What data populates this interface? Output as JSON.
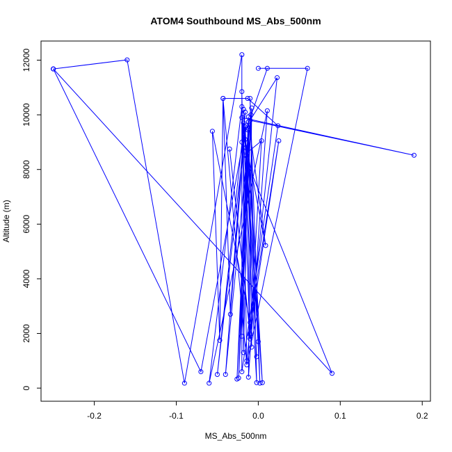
{
  "chart_data": {
    "type": "line",
    "title": "ATOM4 Southbound MS_Abs_500nm",
    "xlabel": "MS_Abs_500nm",
    "ylabel": "Altitude (m)",
    "xlim": [
      -0.265,
      0.21
    ],
    "ylim": [
      -480,
      12700
    ],
    "x_ticks": [
      -0.2,
      -0.1,
      0.0,
      0.1,
      0.2
    ],
    "x_tick_labels": [
      "-0.2",
      "-0.1",
      "0.0",
      "0.1",
      "0.2"
    ],
    "y_ticks": [
      0,
      2000,
      4000,
      6000,
      8000,
      10000,
      12000
    ],
    "y_tick_labels": [
      "0",
      "2000",
      "4000",
      "6000",
      "8000",
      "10000",
      "12000"
    ],
    "series": [
      {
        "color": "#0000ff",
        "marker": "open-circle",
        "points": [
          {
            "x": -0.25,
            "y": 11680
          },
          {
            "x": -0.16,
            "y": 12010
          },
          {
            "x": -0.09,
            "y": 180
          },
          {
            "x": -0.02,
            "y": 12200
          },
          {
            "x": -0.02,
            "y": 600
          },
          {
            "x": 0.024,
            "y": 9600
          },
          {
            "x": -0.013,
            "y": 10600
          },
          {
            "x": -0.043,
            "y": 10600
          },
          {
            "x": -0.014,
            "y": 850
          },
          {
            "x": 0.06,
            "y": 11700
          },
          {
            "x": 0.0,
            "y": 11700
          },
          {
            "x": 0.011,
            "y": 11700
          },
          {
            "x": -0.02,
            "y": 9000
          },
          {
            "x": -0.02,
            "y": 10850
          },
          {
            "x": -0.014,
            "y": 1000
          },
          {
            "x": 0.023,
            "y": 11360
          },
          {
            "x": -0.01,
            "y": 9800
          },
          {
            "x": 0.19,
            "y": 8520
          },
          {
            "x": -0.02,
            "y": 9900
          },
          {
            "x": -0.01,
            "y": 1800
          },
          {
            "x": 0.004,
            "y": 9050
          },
          {
            "x": -0.017,
            "y": 8530
          },
          {
            "x": 0.09,
            "y": 540
          },
          {
            "x": -0.25,
            "y": 11680
          },
          {
            "x": -0.25,
            "y": 11680
          },
          {
            "x": -0.07,
            "y": 600
          },
          {
            "x": -0.015,
            "y": 9600
          },
          {
            "x": -0.05,
            "y": 500
          },
          {
            "x": -0.016,
            "y": 10100
          },
          {
            "x": -0.04,
            "y": 500
          },
          {
            "x": -0.009,
            "y": 10000
          },
          {
            "x": -0.026,
            "y": 330
          },
          {
            "x": -0.012,
            "y": 9930
          },
          {
            "x": -0.024,
            "y": 370
          },
          {
            "x": -0.008,
            "y": 10250
          },
          {
            "x": -0.012,
            "y": 400
          },
          {
            "x": 0.011,
            "y": 10150
          },
          {
            "x": -0.06,
            "y": 180
          },
          {
            "x": -0.02,
            "y": 10300
          },
          {
            "x": -0.002,
            "y": 200
          },
          {
            "x": -0.01,
            "y": 10600
          },
          {
            "x": 0.002,
            "y": 180
          },
          {
            "x": -0.013,
            "y": 9450
          },
          {
            "x": 0.005,
            "y": 200
          },
          {
            "x": -0.018,
            "y": 9700
          },
          {
            "x": -0.018,
            "y": 1300
          },
          {
            "x": -0.012,
            "y": 9500
          },
          {
            "x": -0.008,
            "y": 1500
          },
          {
            "x": -0.035,
            "y": 8750
          },
          {
            "x": -0.01,
            "y": 2000
          },
          {
            "x": 0.025,
            "y": 9050
          },
          {
            "x": -0.01,
            "y": 2400
          },
          {
            "x": -0.056,
            "y": 9400
          },
          {
            "x": -0.047,
            "y": 1750
          },
          {
            "x": -0.043,
            "y": 10600
          },
          {
            "x": -0.034,
            "y": 2700
          },
          {
            "x": -0.016,
            "y": 9550
          },
          {
            "x": -0.002,
            "y": 1150
          },
          {
            "x": -0.018,
            "y": 10200
          },
          {
            "x": 0.0,
            "y": 1700
          },
          {
            "x": -0.016,
            "y": 9100
          },
          {
            "x": 0.009,
            "y": 5220
          },
          {
            "x": -0.012,
            "y": 9750
          },
          {
            "x": -0.02,
            "y": 1900
          },
          {
            "x": -0.015,
            "y": 8800
          },
          {
            "x": -0.01,
            "y": 1950
          }
        ]
      }
    ]
  }
}
